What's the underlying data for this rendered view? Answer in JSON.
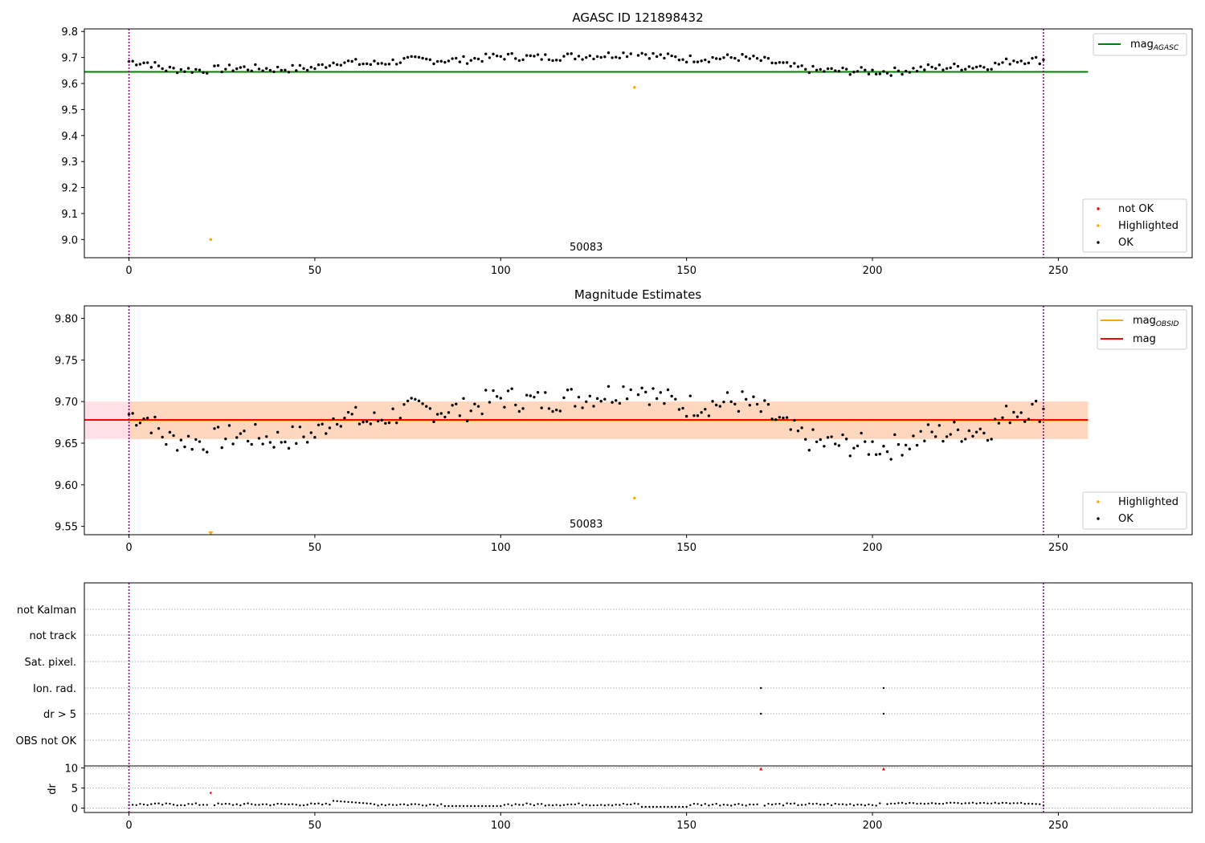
{
  "colors": {
    "ok": "#000000",
    "not_ok": "#ff0000",
    "highlighted": "#ffa500",
    "agasc_line": "#008000",
    "obsid_line": "#ffa500",
    "mag_line": "#ff0000",
    "band_orange": "#ffd7be",
    "band_pink": "#ffe0e6",
    "vline": "#800080",
    "grid": "#b0b0b0"
  },
  "chart_data": [
    {
      "type": "scatter",
      "title": "AGASC ID 121898432",
      "xlim": [
        -12,
        286
      ],
      "ylim": [
        8.93,
        9.81
      ],
      "xticks": [
        0,
        50,
        100,
        150,
        200,
        250
      ],
      "yticks": [
        9.0,
        9.1,
        9.2,
        9.3,
        9.4,
        9.5,
        9.6,
        9.7,
        9.8
      ],
      "ytick_decimals": 1,
      "annotation": {
        "text": "50083",
        "x": 123
      },
      "vlines": [
        0,
        246
      ],
      "hline": {
        "name": "mag_AGASC",
        "y": 9.645,
        "x0": -12,
        "x1": 258
      },
      "highlighted": [
        {
          "x": 22,
          "y": 9.0
        },
        {
          "x": 136,
          "y": 9.585
        }
      ],
      "legend_top": [
        "mag_AGASC"
      ],
      "legend_bottom": [
        "not OK",
        "Highlighted",
        "OK"
      ]
    },
    {
      "type": "scatter",
      "title": "Magnitude Estimates",
      "xlim": [
        -12,
        286
      ],
      "ylim": [
        9.54,
        9.815
      ],
      "xticks": [
        0,
        50,
        100,
        150,
        200,
        250
      ],
      "yticks": [
        9.55,
        9.6,
        9.65,
        9.7,
        9.75,
        9.8
      ],
      "ytick_decimals": 2,
      "annotation": {
        "text": "50083",
        "x": 123
      },
      "vlines": [
        0,
        246
      ],
      "mag_obsid": 9.6775,
      "mag": 9.678,
      "band": [
        9.655,
        9.7
      ],
      "highlighted": [
        {
          "x": 136,
          "y": 9.584
        }
      ],
      "clipped_highlighted": [
        {
          "x": 22,
          "y": 9.542
        }
      ],
      "legend_top": [
        "mag_OBSID",
        "mag"
      ],
      "legend_bottom": [
        "Highlighted",
        "OK"
      ]
    },
    {
      "type": "scatter",
      "title": "",
      "xlim": [
        -12,
        286
      ],
      "xticks": [
        0,
        50,
        100,
        150,
        200,
        250
      ],
      "flag_labels": [
        "not Kalman",
        "not track",
        "Sat. pixel.",
        "Ion. rad.",
        "dr > 5",
        "OBS not OK"
      ],
      "flags": {
        "Ion. rad.": [
          170,
          203
        ],
        "dr > 5": [
          170,
          203
        ]
      },
      "ylabel": "dr",
      "dr_yticks": [
        0,
        5,
        10
      ],
      "dr_ylim": [
        -0.5,
        10.5
      ],
      "dr_high": [
        {
          "x": 170,
          "y": 9.8
        },
        {
          "x": 203,
          "y": 9.8
        },
        {
          "x": 22,
          "y": 3.8
        }
      ],
      "vlines": [
        0,
        246
      ]
    }
  ]
}
